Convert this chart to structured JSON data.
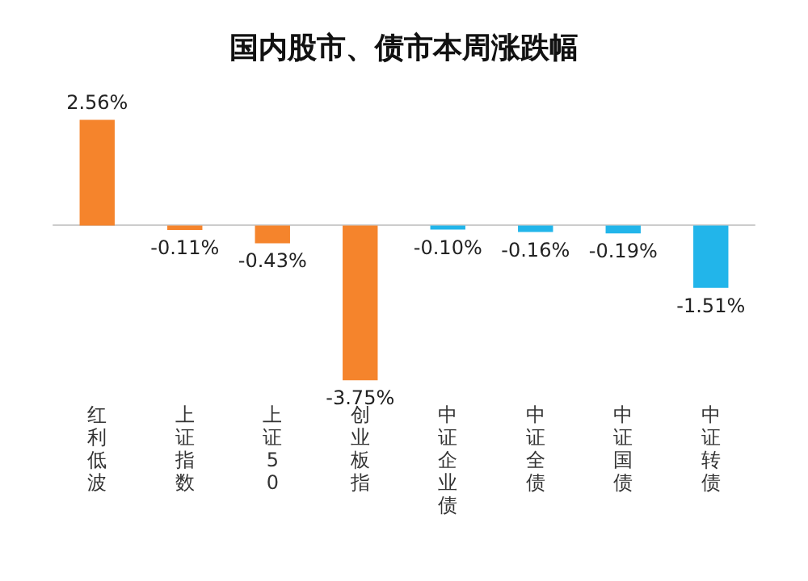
{
  "chart_data": {
    "type": "bar",
    "title": "国内股市、债市本周涨跌幅",
    "categories": [
      "红利低波",
      "上证指数",
      "上证50",
      "创业板指",
      "中证企业债",
      "中证全债",
      "中证国债",
      "中证转债"
    ],
    "values": [
      2.56,
      -0.11,
      -0.43,
      -3.75,
      -0.1,
      -0.16,
      -0.19,
      -1.51
    ],
    "value_labels": [
      "2.56%",
      "-0.11%",
      "-0.43%",
      "-3.75%",
      "-0.10%",
      "-0.16%",
      "-0.19%",
      "-1.51%"
    ],
    "colors": [
      "#f5842c",
      "#f5842c",
      "#f5842c",
      "#f5842c",
      "#22b5ea",
      "#22b5ea",
      "#22b5ea",
      "#22b5ea"
    ],
    "tick_labels": "x"
  }
}
